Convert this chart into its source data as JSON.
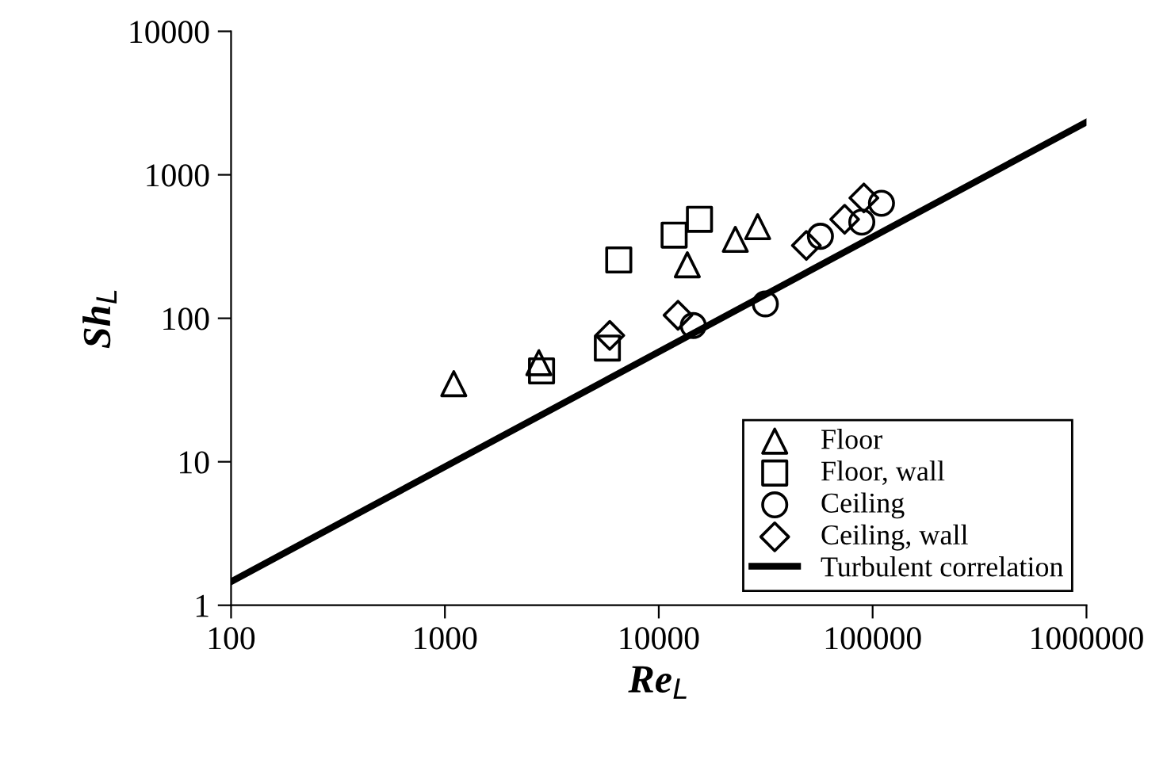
{
  "chart_data": {
    "type": "scatter",
    "xlabel": "Re$_{L}$",
    "ylabel": "Sh$_{L}$",
    "log": "xy",
    "xlim": [
      100,
      1000000
    ],
    "ylim": [
      1,
      10000
    ],
    "xticks": [
      100,
      1000,
      10000,
      100000,
      1000000
    ],
    "yticks": [
      1,
      10,
      100,
      1000,
      10000
    ],
    "grid": false,
    "legend": "bottom right",
    "series": [
      {
        "name": "Floor",
        "color": "#000000",
        "marker": "triangle",
        "x": [
          1100,
          2750,
          13600,
          22800,
          29000
        ],
        "values": [
          35,
          49,
          236,
          355,
          435
        ]
      },
      {
        "name": "Floor, wall",
        "color": "#000000",
        "marker": "square",
        "x": [
          2830,
          5750,
          6500,
          11800,
          15500
        ],
        "values": [
          43,
          62,
          255,
          380,
          490
        ]
      },
      {
        "name": "Ceiling",
        "color": "#000000",
        "marker": "circle",
        "x": [
          14500,
          31500,
          57000,
          89000,
          110000
        ],
        "values": [
          89,
          126,
          373,
          468,
          633
        ]
      },
      {
        "name": "Ceiling, wall",
        "color": "#000000",
        "marker": "diamond",
        "x": [
          5900,
          12300,
          49000,
          74000,
          91000
        ],
        "values": [
          76,
          105,
          322,
          490,
          690
        ]
      },
      {
        "name": "Turbulent correlation",
        "type": "line",
        "color": "#000000",
        "marker": "none",
        "line_style": "solid",
        "x": [
          100,
          1000000
        ],
        "values": [
          1.46,
          2330
        ]
      }
    ]
  }
}
